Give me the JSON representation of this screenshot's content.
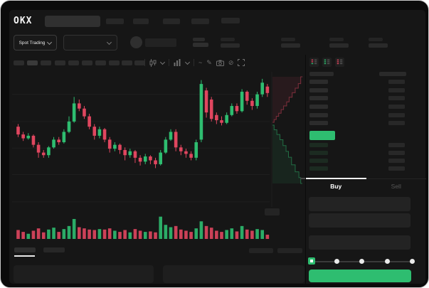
{
  "app": {
    "name": "OKX trading terminal",
    "theme": "dark"
  },
  "colors": {
    "green": "#2ebd70",
    "red": "#e0465f",
    "background": "#161616",
    "panel_placeholder": "#272727",
    "tab_indicator": "#f5f5f5"
  },
  "header": {
    "logo": "OKX",
    "market_selector_label": "Spot Trading",
    "nav_items": [
      "nav-1",
      "nav-2",
      "nav-3",
      "nav-4",
      "nav-5"
    ],
    "stat_blocks": [
      "stat-1",
      "stat-2",
      "stat-3",
      "stat-4"
    ]
  },
  "toolbar": {
    "timeframe_buttons": 10,
    "icons": [
      "candle-type",
      "chevron-down",
      "indicator",
      "chevron-down",
      "wave",
      "pencil",
      "camera",
      "slash-circle",
      "expand"
    ]
  },
  "icons": {
    "wave": "~",
    "pencil": "✎",
    "slash_circle": "⊘"
  },
  "orderbook": {
    "view_modes": [
      "book-both-sides",
      "book-buys-only",
      "book-sells-only"
    ],
    "ask_rows": 6,
    "bid_rows": 4,
    "last_price_highlight": "green",
    "tabs": {
      "buy": "Buy",
      "sell": "Sell",
      "active": "Buy"
    },
    "form_fields": 3,
    "slider": {
      "stops": 5,
      "value_index": 0
    },
    "buy_button_color": "#2ebd70"
  },
  "chart_data": [
    {
      "type": "candlestick",
      "title": "",
      "xlabel": "",
      "ylabel": "",
      "price_scale": [
        0,
        100
      ],
      "grid": true,
      "grid_levels": [
        87,
        66,
        45.5,
        25,
        4
      ],
      "candles": [
        [
          62,
          64,
          54,
          56
        ],
        [
          56,
          58,
          51,
          53
        ],
        [
          53,
          57,
          52,
          55
        ],
        [
          55,
          56,
          46,
          48
        ],
        [
          48,
          50,
          38,
          42
        ],
        [
          42,
          44,
          38,
          40
        ],
        [
          40,
          47,
          38,
          46
        ],
        [
          46,
          54,
          45,
          52
        ],
        [
          52,
          54,
          48,
          50
        ],
        [
          50,
          60,
          49,
          58
        ],
        [
          58,
          70,
          57,
          66
        ],
        [
          66,
          85,
          65,
          80
        ],
        [
          80,
          83,
          74,
          76
        ],
        [
          76,
          78,
          68,
          70
        ],
        [
          70,
          72,
          60,
          62
        ],
        [
          62,
          64,
          52,
          55
        ],
        [
          55,
          62,
          53,
          60
        ],
        [
          60,
          61,
          50,
          52
        ],
        [
          52,
          54,
          42,
          45
        ],
        [
          45,
          50,
          43,
          48
        ],
        [
          48,
          49,
          41,
          44
        ],
        [
          44,
          46,
          36,
          40
        ],
        [
          40,
          45,
          38,
          43
        ],
        [
          43,
          44,
          34,
          38
        ],
        [
          38,
          40,
          32,
          35
        ],
        [
          35,
          41,
          33,
          39
        ],
        [
          39,
          40,
          33,
          36
        ],
        [
          36,
          38,
          30,
          33
        ],
        [
          33,
          44,
          32,
          42
        ],
        [
          42,
          54,
          41,
          52
        ],
        [
          52,
          60,
          51,
          58
        ],
        [
          58,
          60,
          43,
          46
        ],
        [
          46,
          48,
          40,
          43
        ],
        [
          43,
          45,
          38,
          41
        ],
        [
          41,
          43,
          36,
          38
        ],
        [
          38,
          52,
          36,
          50
        ],
        [
          52,
          98,
          50,
          95
        ],
        [
          90,
          92,
          69,
          73
        ],
        [
          83,
          85,
          66,
          68
        ],
        [
          71,
          73,
          64,
          67
        ],
        [
          67,
          70,
          63,
          65
        ],
        [
          65,
          73,
          64,
          71
        ],
        [
          71,
          80,
          70,
          78
        ],
        [
          78,
          80,
          72,
          74
        ],
        [
          74,
          91,
          73,
          89
        ],
        [
          89,
          90,
          79,
          82
        ],
        [
          82,
          84,
          75,
          78
        ],
        [
          78,
          89,
          76,
          87
        ],
        [
          87,
          99,
          85,
          96
        ],
        [
          93,
          95,
          85,
          88
        ]
      ]
    },
    {
      "type": "bar",
      "name": "volume",
      "values": [
        38,
        30,
        22,
        35,
        45,
        28,
        40,
        48,
        30,
        42,
        55,
        85,
        50,
        45,
        40,
        38,
        42,
        40,
        45,
        35,
        30,
        38,
        28,
        42,
        35,
        30,
        32,
        28,
        95,
        60,
        50,
        55,
        40,
        35,
        30,
        45,
        75,
        55,
        48,
        35,
        30,
        38,
        45,
        32,
        55,
        40,
        35,
        42,
        38,
        18
      ],
      "color_rule": "green if close >= open else red"
    },
    {
      "type": "area",
      "name": "orderbook-depth",
      "orientation": "vertical",
      "asks": [
        [
          0,
          0.03
        ],
        [
          0.06,
          0.1
        ],
        [
          0.13,
          0.18
        ],
        [
          0.2,
          0.26
        ],
        [
          0.28,
          0.34
        ],
        [
          0.36,
          0.44
        ],
        [
          0.45,
          0.52
        ],
        [
          0.55,
          0.62
        ],
        [
          0.65,
          0.72
        ],
        [
          0.75,
          0.82
        ],
        [
          0.85,
          0.9
        ],
        [
          1,
          0.96
        ]
      ],
      "bids": [
        [
          0,
          0.03
        ],
        [
          0.08,
          0.12
        ],
        [
          0.16,
          0.22
        ],
        [
          0.25,
          0.32
        ],
        [
          0.35,
          0.42
        ],
        [
          0.45,
          0.5
        ],
        [
          0.55,
          0.6
        ],
        [
          0.68,
          0.72
        ],
        [
          0.8,
          0.84
        ],
        [
          0.9,
          0.9
        ],
        [
          1,
          0.95
        ]
      ]
    }
  ]
}
